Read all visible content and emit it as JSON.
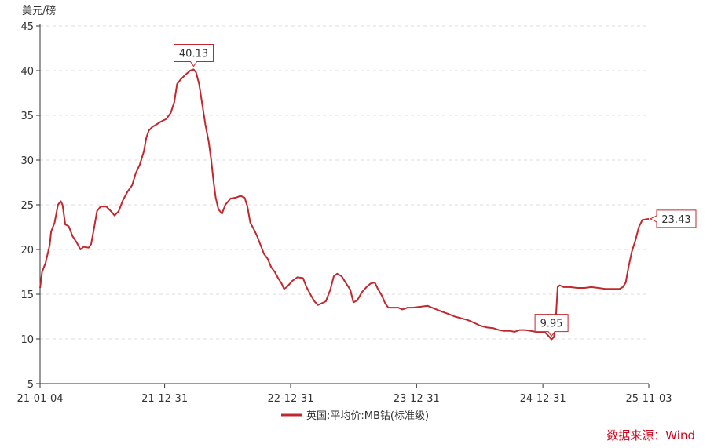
{
  "chart_data": {
    "type": "line",
    "ylabel": "美元/磅",
    "ylim": [
      5,
      45
    ],
    "yticks": [
      5,
      10,
      15,
      20,
      25,
      30,
      35,
      40,
      45
    ],
    "xlim": [
      "2021-01-04",
      "2025-11-03"
    ],
    "xticks": [
      {
        "date": "2021-01-04",
        "label": "21-01-04"
      },
      {
        "date": "2021-12-31",
        "label": "21-12-31"
      },
      {
        "date": "2022-12-31",
        "label": "22-12-31"
      },
      {
        "date": "2023-12-31",
        "label": "23-12-31"
      },
      {
        "date": "2024-12-31",
        "label": "24-12-31"
      },
      {
        "date": "2025-11-03",
        "label": "25-11-03"
      }
    ],
    "grid": true,
    "legend": "bottom-center",
    "color": "#c0282e",
    "series": [
      {
        "name": "英国:平均价:MB钴(标准级)",
        "points": [
          [
            "2021-01-04",
            15.7
          ],
          [
            "2021-01-10",
            17.5
          ],
          [
            "2021-01-20",
            18.5
          ],
          [
            "2021-02-01",
            20.5
          ],
          [
            "2021-02-05",
            22.0
          ],
          [
            "2021-02-15",
            23.0
          ],
          [
            "2021-02-25",
            25.0
          ],
          [
            "2021-03-05",
            25.4
          ],
          [
            "2021-03-10",
            25.0
          ],
          [
            "2021-03-18",
            22.8
          ],
          [
            "2021-03-28",
            22.6
          ],
          [
            "2021-04-08",
            21.5
          ],
          [
            "2021-04-20",
            20.8
          ],
          [
            "2021-05-01",
            20.0
          ],
          [
            "2021-05-10",
            20.3
          ],
          [
            "2021-05-25",
            20.2
          ],
          [
            "2021-06-01",
            20.6
          ],
          [
            "2021-06-10",
            22.5
          ],
          [
            "2021-06-18",
            24.3
          ],
          [
            "2021-06-28",
            24.8
          ],
          [
            "2021-07-15",
            24.8
          ],
          [
            "2021-07-28",
            24.3
          ],
          [
            "2021-08-08",
            23.8
          ],
          [
            "2021-08-20",
            24.3
          ],
          [
            "2021-09-01",
            25.5
          ],
          [
            "2021-09-15",
            26.5
          ],
          [
            "2021-09-28",
            27.2
          ],
          [
            "2021-10-08",
            28.5
          ],
          [
            "2021-10-20",
            29.5
          ],
          [
            "2021-11-01",
            31.0
          ],
          [
            "2021-11-08",
            32.5
          ],
          [
            "2021-11-15",
            33.3
          ],
          [
            "2021-11-25",
            33.7
          ],
          [
            "2021-12-08",
            34.0
          ],
          [
            "2021-12-20",
            34.3
          ],
          [
            "2022-01-05",
            34.6
          ],
          [
            "2022-01-18",
            35.3
          ],
          [
            "2022-01-28",
            36.5
          ],
          [
            "2022-02-05",
            38.5
          ],
          [
            "2022-02-15",
            39.0
          ],
          [
            "2022-02-28",
            39.5
          ],
          [
            "2022-03-15",
            40.0
          ],
          [
            "2022-03-25",
            40.13
          ],
          [
            "2022-04-01",
            39.8
          ],
          [
            "2022-04-10",
            38.5
          ],
          [
            "2022-04-20",
            36.0
          ],
          [
            "2022-04-28",
            34.0
          ],
          [
            "2022-05-08",
            32.0
          ],
          [
            "2022-05-15",
            30.0
          ],
          [
            "2022-05-22",
            27.5
          ],
          [
            "2022-05-28",
            25.8
          ],
          [
            "2022-06-05",
            24.5
          ],
          [
            "2022-06-15",
            24.0
          ],
          [
            "2022-06-25",
            25.0
          ],
          [
            "2022-07-10",
            25.7
          ],
          [
            "2022-07-25",
            25.8
          ],
          [
            "2022-08-08",
            26.0
          ],
          [
            "2022-08-20",
            25.8
          ],
          [
            "2022-08-28",
            24.8
          ],
          [
            "2022-09-05",
            23.0
          ],
          [
            "2022-09-15",
            22.3
          ],
          [
            "2022-09-25",
            21.5
          ],
          [
            "2022-10-05",
            20.5
          ],
          [
            "2022-10-15",
            19.5
          ],
          [
            "2022-10-25",
            19.0
          ],
          [
            "2022-11-05",
            18.0
          ],
          [
            "2022-11-15",
            17.5
          ],
          [
            "2022-11-25",
            16.8
          ],
          [
            "2022-12-05",
            16.2
          ],
          [
            "2022-12-12",
            15.6
          ],
          [
            "2022-12-20",
            15.8
          ],
          [
            "2023-01-05",
            16.5
          ],
          [
            "2023-01-20",
            16.9
          ],
          [
            "2023-02-05",
            16.8
          ],
          [
            "2023-02-15",
            15.8
          ],
          [
            "2023-03-01",
            14.8
          ],
          [
            "2023-03-10",
            14.2
          ],
          [
            "2023-03-20",
            13.8
          ],
          [
            "2023-04-01",
            14.0
          ],
          [
            "2023-04-12",
            14.2
          ],
          [
            "2023-04-25",
            15.5
          ],
          [
            "2023-05-05",
            17.0
          ],
          [
            "2023-05-15",
            17.3
          ],
          [
            "2023-05-28",
            17.0
          ],
          [
            "2023-06-10",
            16.2
          ],
          [
            "2023-06-22",
            15.5
          ],
          [
            "2023-07-01",
            14.1
          ],
          [
            "2023-07-12",
            14.3
          ],
          [
            "2023-07-25",
            15.2
          ],
          [
            "2023-08-08",
            15.8
          ],
          [
            "2023-08-20",
            16.2
          ],
          [
            "2023-09-01",
            16.3
          ],
          [
            "2023-09-10",
            15.6
          ],
          [
            "2023-09-22",
            14.8
          ],
          [
            "2023-10-01",
            14.0
          ],
          [
            "2023-10-10",
            13.5
          ],
          [
            "2023-10-25",
            13.5
          ],
          [
            "2023-11-08",
            13.5
          ],
          [
            "2023-11-20",
            13.3
          ],
          [
            "2023-12-05",
            13.5
          ],
          [
            "2023-12-20",
            13.5
          ],
          [
            "2024-01-10",
            13.6
          ],
          [
            "2024-02-01",
            13.7
          ],
          [
            "2024-02-20",
            13.4
          ],
          [
            "2024-03-10",
            13.1
          ],
          [
            "2024-04-01",
            12.8
          ],
          [
            "2024-04-20",
            12.5
          ],
          [
            "2024-05-10",
            12.3
          ],
          [
            "2024-05-28",
            12.1
          ],
          [
            "2024-06-15",
            11.8
          ],
          [
            "2024-07-01",
            11.5
          ],
          [
            "2024-07-20",
            11.3
          ],
          [
            "2024-08-10",
            11.2
          ],
          [
            "2024-08-25",
            11.0
          ],
          [
            "2024-09-10",
            10.9
          ],
          [
            "2024-09-25",
            10.9
          ],
          [
            "2024-10-10",
            10.8
          ],
          [
            "2024-10-25",
            11.0
          ],
          [
            "2024-11-10",
            11.0
          ],
          [
            "2024-11-25",
            10.9
          ],
          [
            "2024-12-10",
            10.8
          ],
          [
            "2024-12-25",
            10.7
          ],
          [
            "2025-01-05",
            10.8
          ],
          [
            "2025-01-15",
            10.4
          ],
          [
            "2025-01-25",
            9.95
          ],
          [
            "2025-02-01",
            10.2
          ],
          [
            "2025-02-06",
            12.0
          ],
          [
            "2025-02-12",
            15.8
          ],
          [
            "2025-02-18",
            16.0
          ],
          [
            "2025-03-01",
            15.8
          ],
          [
            "2025-03-20",
            15.8
          ],
          [
            "2025-04-10",
            15.7
          ],
          [
            "2025-05-01",
            15.7
          ],
          [
            "2025-05-20",
            15.8
          ],
          [
            "2025-06-10",
            15.7
          ],
          [
            "2025-06-30",
            15.6
          ],
          [
            "2025-07-20",
            15.6
          ],
          [
            "2025-08-10",
            15.6
          ],
          [
            "2025-08-20",
            15.8
          ],
          [
            "2025-08-28",
            16.3
          ],
          [
            "2025-09-05",
            18.0
          ],
          [
            "2025-09-15",
            19.8
          ],
          [
            "2025-09-25",
            21.0
          ],
          [
            "2025-10-05",
            22.5
          ],
          [
            "2025-10-15",
            23.3
          ],
          [
            "2025-11-03",
            23.43
          ]
        ]
      }
    ],
    "annotations": [
      {
        "date": "2022-03-25",
        "value": 40.13,
        "label": "40.13",
        "position": "above"
      },
      {
        "date": "2025-01-25",
        "value": 9.95,
        "label": "9.95",
        "position": "above"
      },
      {
        "date": "2025-11-03",
        "value": 23.43,
        "label": "23.43",
        "position": "right"
      }
    ]
  },
  "source": "数据来源：Wind"
}
